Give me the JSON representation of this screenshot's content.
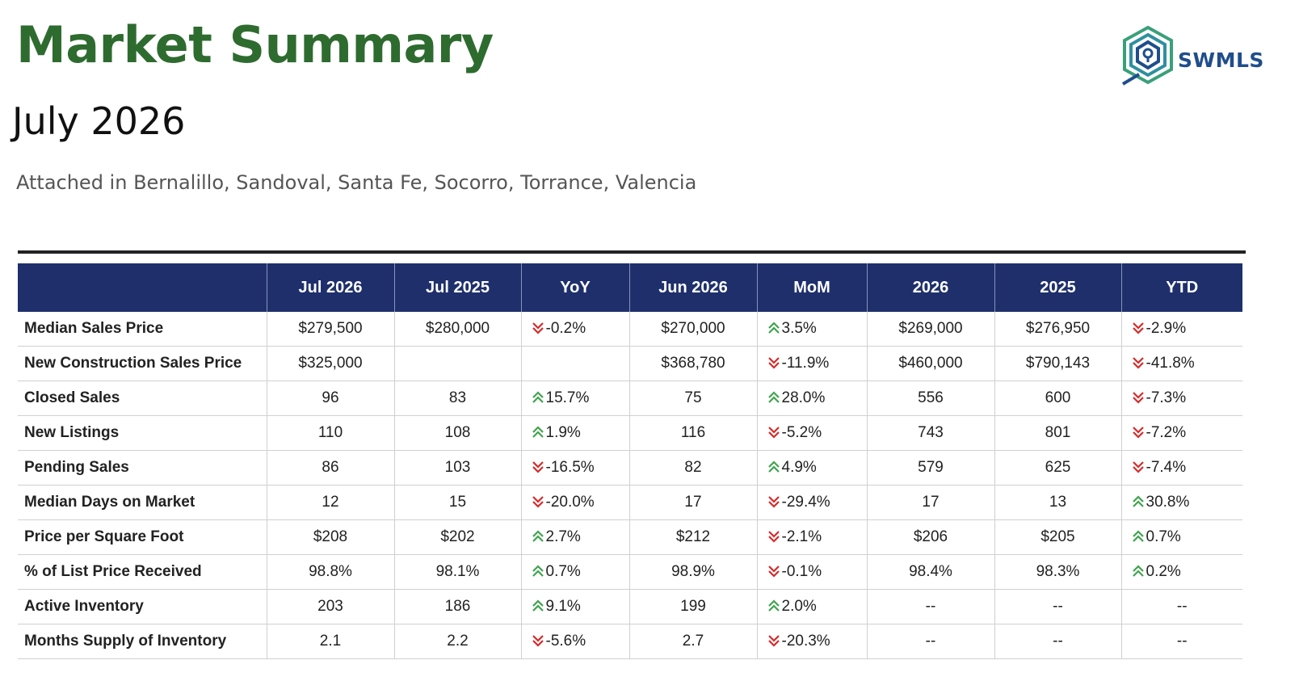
{
  "header": {
    "title": "Market Summary",
    "period": "July 2026",
    "region": "Attached in Bernalillo, Sandoval, Santa Fe, Socorro, Torrance, Valencia"
  },
  "logo": {
    "text": "SWMLS",
    "icon": "map-pin-hexagon-icon"
  },
  "colors": {
    "title": "#2e6b2f",
    "header_bg": "#1e2f6b",
    "up": "#3fa34d",
    "down": "#d62a2a",
    "logo": "#1f4e8c"
  },
  "table": {
    "columns": [
      "",
      "Jul 2026",
      "Jul 2025",
      "YoY",
      "Jun 2026",
      "MoM",
      "2026",
      "2025",
      "YTD"
    ],
    "rows": [
      {
        "metric": "Median Sales Price",
        "jul2026": "$279,500",
        "jul2025": "$280,000",
        "yoy": "-0.2%",
        "yoy_dir": "down",
        "jun2026": "$270,000",
        "mom": "3.5%",
        "mom_dir": "up",
        "y2026": "$269,000",
        "y2025": "$276,950",
        "ytd": "-2.9%",
        "ytd_dir": "down"
      },
      {
        "metric": "New Construction Sales Price",
        "jul2026": "$325,000",
        "jul2025": "",
        "yoy": "",
        "yoy_dir": "",
        "jun2026": "$368,780",
        "mom": "-11.9%",
        "mom_dir": "down",
        "y2026": "$460,000",
        "y2025": "$790,143",
        "ytd": "-41.8%",
        "ytd_dir": "down"
      },
      {
        "metric": "Closed Sales",
        "jul2026": "96",
        "jul2025": "83",
        "yoy": "15.7%",
        "yoy_dir": "up",
        "jun2026": "75",
        "mom": "28.0%",
        "mom_dir": "up",
        "y2026": "556",
        "y2025": "600",
        "ytd": "-7.3%",
        "ytd_dir": "down"
      },
      {
        "metric": "New Listings",
        "jul2026": "110",
        "jul2025": "108",
        "yoy": "1.9%",
        "yoy_dir": "up",
        "jun2026": "116",
        "mom": "-5.2%",
        "mom_dir": "down",
        "y2026": "743",
        "y2025": "801",
        "ytd": "-7.2%",
        "ytd_dir": "down"
      },
      {
        "metric": "Pending Sales",
        "jul2026": "86",
        "jul2025": "103",
        "yoy": "-16.5%",
        "yoy_dir": "down",
        "jun2026": "82",
        "mom": "4.9%",
        "mom_dir": "up",
        "y2026": "579",
        "y2025": "625",
        "ytd": "-7.4%",
        "ytd_dir": "down"
      },
      {
        "metric": "Median Days on Market",
        "jul2026": "12",
        "jul2025": "15",
        "yoy": "-20.0%",
        "yoy_dir": "down",
        "jun2026": "17",
        "mom": "-29.4%",
        "mom_dir": "down",
        "y2026": "17",
        "y2025": "13",
        "ytd": "30.8%",
        "ytd_dir": "up"
      },
      {
        "metric": "Price per Square Foot",
        "jul2026": "$208",
        "jul2025": "$202",
        "yoy": "2.7%",
        "yoy_dir": "up",
        "jun2026": "$212",
        "mom": "-2.1%",
        "mom_dir": "down",
        "y2026": "$206",
        "y2025": "$205",
        "ytd": "0.7%",
        "ytd_dir": "up"
      },
      {
        "metric": "% of List Price Received",
        "jul2026": "98.8%",
        "jul2025": "98.1%",
        "yoy": "0.7%",
        "yoy_dir": "up",
        "jun2026": "98.9%",
        "mom": "-0.1%",
        "mom_dir": "down",
        "y2026": "98.4%",
        "y2025": "98.3%",
        "ytd": "0.2%",
        "ytd_dir": "up"
      },
      {
        "metric": "Active Inventory",
        "jul2026": "203",
        "jul2025": "186",
        "yoy": "9.1%",
        "yoy_dir": "up",
        "jun2026": "199",
        "mom": "2.0%",
        "mom_dir": "up",
        "y2026": "--",
        "y2025": "--",
        "ytd": "--",
        "ytd_dir": ""
      },
      {
        "metric": "Months Supply of Inventory",
        "jul2026": "2.1",
        "jul2025": "2.2",
        "yoy": "-5.6%",
        "yoy_dir": "down",
        "jun2026": "2.7",
        "mom": "-20.3%",
        "mom_dir": "down",
        "y2026": "--",
        "y2025": "--",
        "ytd": "--",
        "ytd_dir": ""
      }
    ]
  }
}
